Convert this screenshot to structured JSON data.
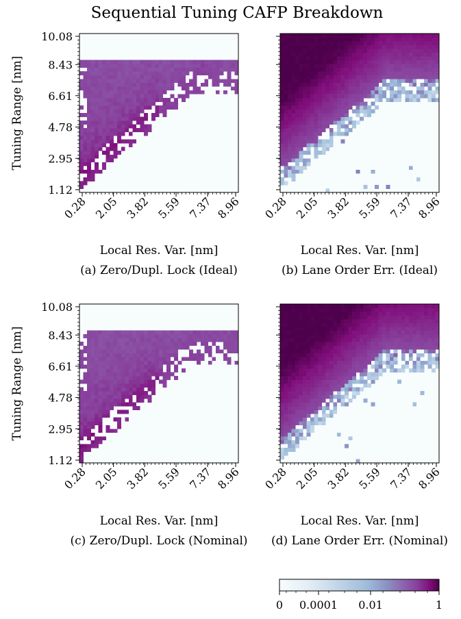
{
  "figure": {
    "title": "Sequential Tuning CAFP Breakdown"
  },
  "chart_data": [
    {
      "type": "heatmap",
      "caption": "(a) Zero/Dupl. Lock (Ideal)",
      "xlabel": "Local Res. Var. [nm]",
      "ylabel": "Tuning Range [nm]",
      "x_ticks": [
        "0.28",
        "2.05",
        "3.82",
        "5.59",
        "7.37",
        "8.96"
      ],
      "y_ticks": [
        "1.12",
        "2.95",
        "4.78",
        "6.61",
        "8.43",
        "10.08"
      ],
      "xlim": [
        0.28,
        8.96
      ],
      "ylim": [
        1.12,
        10.08
      ],
      "pattern": "lock"
    },
    {
      "type": "heatmap",
      "caption": "(b) Lane Order Err. (Ideal)",
      "xlabel": "Local Res. Var. [nm]",
      "ylabel": "",
      "x_ticks": [
        "0.28",
        "2.05",
        "3.82",
        "5.59",
        "7.37",
        "8.96"
      ],
      "y_ticks": [],
      "xlim": [
        0.28,
        8.96
      ],
      "ylim": [
        1.12,
        10.08
      ],
      "pattern": "order"
    },
    {
      "type": "heatmap",
      "caption": "(c) Zero/Dupl. Lock (Nominal)",
      "xlabel": "Local Res. Var. [nm]",
      "ylabel": "Tuning Range [nm]",
      "x_ticks": [
        "0.28",
        "2.05",
        "3.82",
        "5.59",
        "7.37",
        "8.96"
      ],
      "y_ticks": [
        "1.12",
        "2.95",
        "4.78",
        "6.61",
        "8.43",
        "10.08"
      ],
      "xlim": [
        0.28,
        8.96
      ],
      "ylim": [
        1.12,
        10.08
      ],
      "pattern": "lock"
    },
    {
      "type": "heatmap",
      "caption": "(d) Lane Order Err. (Nominal)",
      "xlabel": "Local Res. Var. [nm]",
      "ylabel": "",
      "x_ticks": [
        "0.28",
        "2.05",
        "3.82",
        "5.59",
        "7.37",
        "8.96"
      ],
      "y_ticks": [],
      "xlim": [
        0.28,
        8.96
      ],
      "ylim": [
        1.12,
        10.08
      ],
      "pattern": "order"
    }
  ],
  "colorbar": {
    "scale": "symlog",
    "tick_labels": [
      "0",
      "0.0001",
      "0.01",
      "1"
    ],
    "colors": [
      "#f7fcfd",
      "#bfd3e6",
      "#8c96c6",
      "#88419d",
      "#6e016b",
      "#4d004b"
    ]
  }
}
